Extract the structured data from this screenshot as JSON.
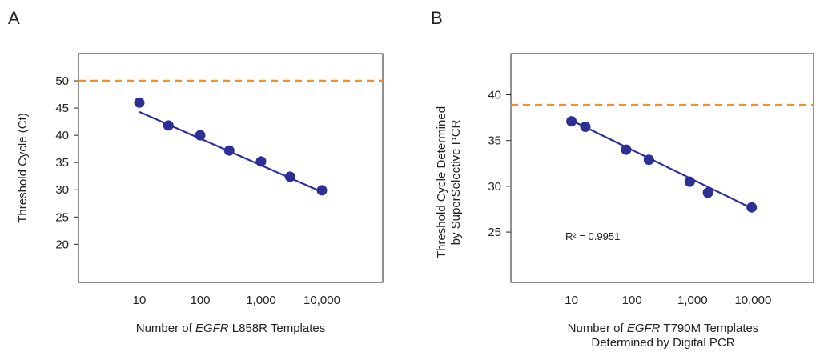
{
  "chart_data": [
    {
      "type": "scatter",
      "panel": "A",
      "xscale": "log",
      "xlim": [
        1,
        100000
      ],
      "ylim": [
        13,
        55
      ],
      "xticks": [
        10,
        100,
        1000,
        10000
      ],
      "xtick_labels": [
        "10",
        "100",
        "1,000",
        "10,000"
      ],
      "yticks": [
        20,
        25,
        30,
        35,
        40,
        45,
        50
      ],
      "ytick_labels": [
        "20",
        "25",
        "30",
        "35",
        "40",
        "45",
        "50"
      ],
      "xlabel_parts": [
        "Number of ",
        "EGFR",
        " L858R Templates"
      ],
      "xlabel2": "",
      "ylabel1": "Threshold Cycle (Ct)",
      "ylabel2": "",
      "threshold": 50,
      "series": [
        {
          "x": [
            10,
            30,
            100,
            300,
            1000,
            3000,
            10000
          ],
          "y": [
            46.0,
            41.8,
            40.0,
            37.2,
            35.2,
            32.4,
            29.9
          ],
          "fit": [
            [
              10,
              44.3
            ],
            [
              10000,
              29.6
            ]
          ]
        }
      ],
      "annotation": "",
      "grid": false,
      "colors": {
        "points": "#2b2f96",
        "fit": "#2b2f96",
        "threshold": "#f0902a"
      }
    },
    {
      "type": "scatter",
      "panel": "B",
      "xscale": "log",
      "xlim": [
        1,
        100000
      ],
      "ylim": [
        19.5,
        44.5
      ],
      "xticks": [
        10,
        100,
        1000,
        10000
      ],
      "xtick_labels": [
        "10",
        "100",
        "1,000",
        "10,000"
      ],
      "yticks": [
        25,
        30,
        35,
        40
      ],
      "ytick_labels": [
        "25",
        "30",
        "35",
        "40"
      ],
      "xlabel_parts": [
        "Number of ",
        "EGFR",
        " T790M Templates"
      ],
      "xlabel2": "Determined by Digital PCR",
      "ylabel1": "Threshold Cycle Determined",
      "ylabel2": "by SuperSelective PCR",
      "threshold": 38.9,
      "series": [
        {
          "x": [
            10,
            17,
            80,
            190,
            900,
            1800,
            9500
          ],
          "y": [
            37.1,
            36.5,
            34.0,
            32.9,
            30.5,
            29.3,
            27.7
          ],
          "fit": [
            [
              10,
              37.2
            ],
            [
              9500,
              27.6
            ]
          ]
        }
      ],
      "annotation": "R² = 0.9951",
      "grid": false,
      "colors": {
        "points": "#2b2f96",
        "fit": "#2b2f96",
        "threshold": "#f0902a"
      }
    }
  ]
}
